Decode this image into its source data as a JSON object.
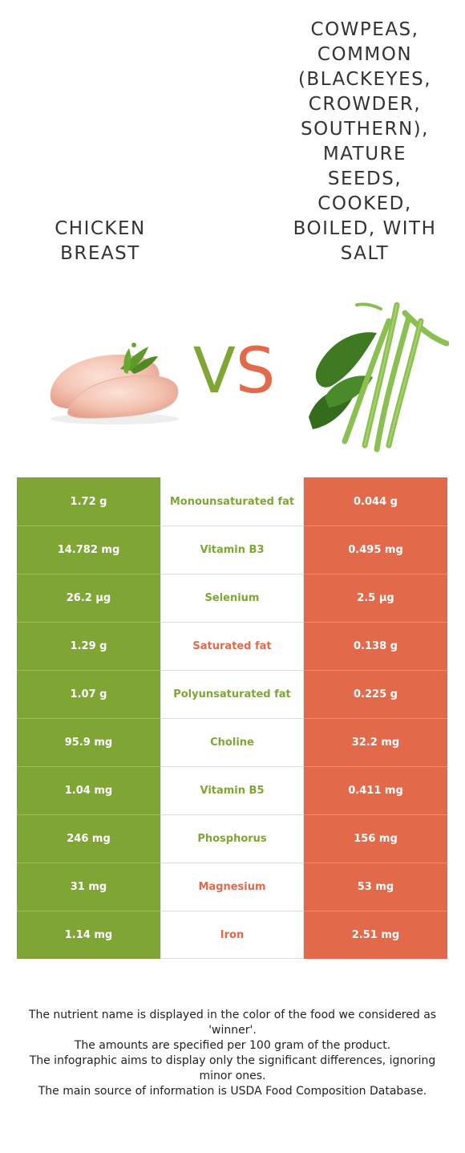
{
  "left_food": {
    "name": "Chicken breast",
    "color": "#7fa535"
  },
  "right_food": {
    "name": "Cowpeas, common (blackeyes, crowder, southern), mature seeds, cooked, boiled, with salt",
    "color": "#e2694a"
  },
  "vs": {
    "v": "V",
    "s": "S"
  },
  "rows": [
    {
      "left": "1.72 g",
      "nutrient": "Monounsaturated fat",
      "right": "0.044 g",
      "winner": "left",
      "winner_color": "#7fa535"
    },
    {
      "left": "14.782 mg",
      "nutrient": "Vitamin B3",
      "right": "0.495 mg",
      "winner": "left",
      "winner_color": "#7fa535"
    },
    {
      "left": "26.2 µg",
      "nutrient": "Selenium",
      "right": "2.5 µg",
      "winner": "left",
      "winner_color": "#7fa535"
    },
    {
      "left": "1.29 g",
      "nutrient": "Saturated fat",
      "right": "0.138 g",
      "winner": "right",
      "winner_color": "#e2694a"
    },
    {
      "left": "1.07 g",
      "nutrient": "Polyunsaturated fat",
      "right": "0.225 g",
      "winner": "left",
      "winner_color": "#7fa535"
    },
    {
      "left": "95.9 mg",
      "nutrient": "Choline",
      "right": "32.2 mg",
      "winner": "left",
      "winner_color": "#7fa535"
    },
    {
      "left": "1.04 mg",
      "nutrient": "Vitamin B5",
      "right": "0.411 mg",
      "winner": "left",
      "winner_color": "#7fa535"
    },
    {
      "left": "246 mg",
      "nutrient": "Phosphorus",
      "right": "156 mg",
      "winner": "left",
      "winner_color": "#7fa535"
    },
    {
      "left": "31 mg",
      "nutrient": "Magnesium",
      "right": "53 mg",
      "winner": "right",
      "winner_color": "#e2694a"
    },
    {
      "left": "1.14 mg",
      "nutrient": "Iron",
      "right": "2.51 mg",
      "winner": "right",
      "winner_color": "#e2694a"
    }
  ],
  "footer": {
    "line1": "The nutrient name is displayed in the color of the food we considered as 'winner'.",
    "line2": "The amounts are specified per 100 gram of the product.",
    "line3": "The infographic aims to display only the significant differences, ignoring minor ones.",
    "line4": "The main source of information is USDA Food Composition Database."
  }
}
